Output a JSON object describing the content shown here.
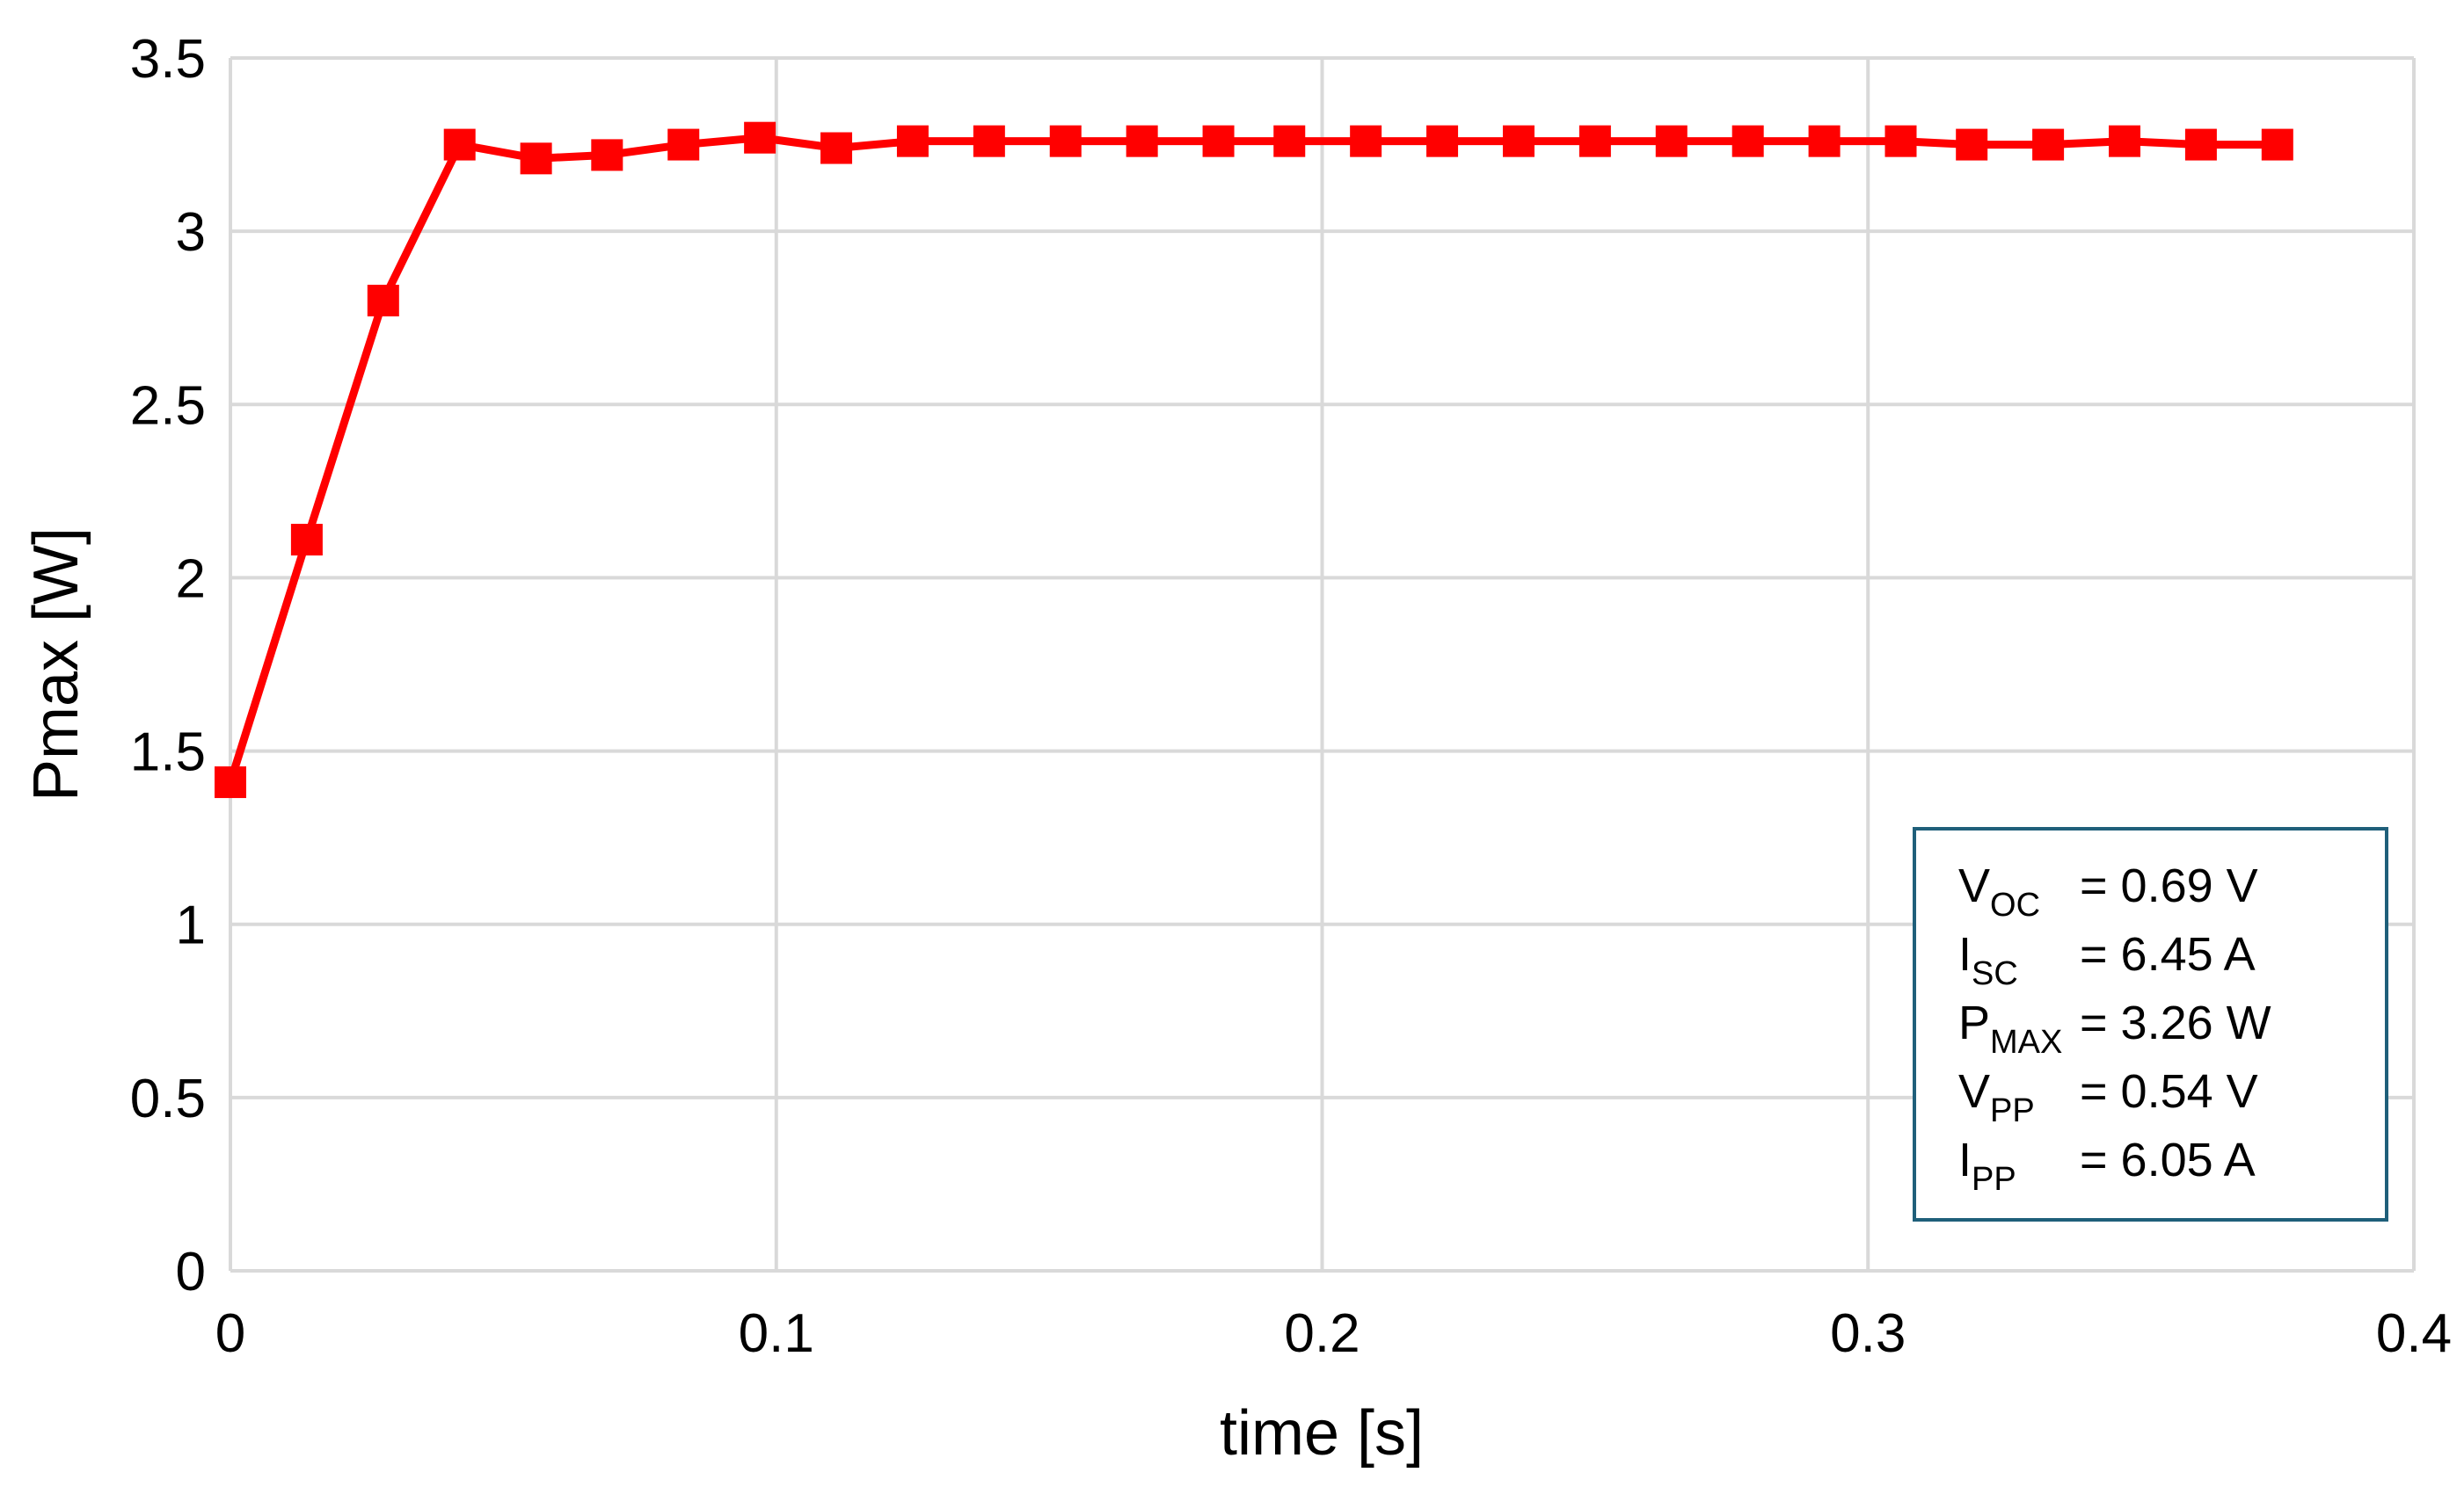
{
  "chart_data": {
    "type": "line",
    "xlabel": "time [s]",
    "ylabel": "Pmax [W]",
    "x": [
      0,
      0.014,
      0.028,
      0.042,
      0.056,
      0.069,
      0.083,
      0.097,
      0.111,
      0.125,
      0.139,
      0.153,
      0.167,
      0.181,
      0.194,
      0.208,
      0.222,
      0.236,
      0.25,
      0.264,
      0.278,
      0.292,
      0.306,
      0.319,
      0.333,
      0.347,
      0.361,
      0.375
    ],
    "series": [
      {
        "name": "Pmax",
        "color": "#ff0000",
        "values": [
          1.41,
          2.11,
          2.8,
          3.25,
          3.21,
          3.22,
          3.25,
          3.27,
          3.24,
          3.26,
          3.26,
          3.26,
          3.26,
          3.26,
          3.26,
          3.26,
          3.26,
          3.26,
          3.26,
          3.26,
          3.26,
          3.26,
          3.26,
          3.25,
          3.25,
          3.26,
          3.25,
          3.25
        ]
      }
    ],
    "xlim": [
      0,
      0.4
    ],
    "xticks": [
      0,
      0.1,
      0.2,
      0.3,
      0.4
    ],
    "ylim": [
      0,
      3.5
    ],
    "yticks": [
      0,
      0.5,
      1,
      1.5,
      2,
      2.5,
      3,
      3.5
    ],
    "grid": true,
    "annotation": {
      "border_color": "#1f5f7a",
      "lines": [
        {
          "symbol": "V",
          "sub": "OC",
          "text": "=  0.69 V"
        },
        {
          "symbol": "I",
          "sub": "SC",
          "text": "= 6.45 A"
        },
        {
          "symbol": "P",
          "sub": "MAX",
          "text": "= 3.26 W"
        },
        {
          "symbol": "V",
          "sub": "PP",
          "text": "= 0.54 V"
        },
        {
          "symbol": "I",
          "sub": "PP",
          "text": "= 6.05 A"
        }
      ]
    }
  }
}
